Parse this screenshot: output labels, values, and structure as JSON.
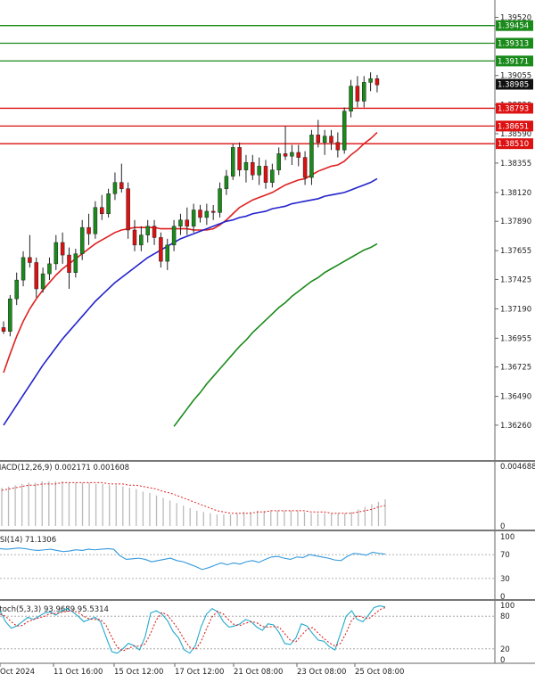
{
  "chart_data": [
    {
      "type": "candlestick",
      "panel": "price",
      "ylim": [
        1.3601,
        1.3963
      ],
      "y_ticks": [
        "1.39520",
        "1.39055",
        "1.38820",
        "1.38590",
        "1.38355",
        "1.38120",
        "1.37890",
        "1.37655",
        "1.37425",
        "1.37190",
        "1.36955",
        "1.36725",
        "1.36490",
        "1.36260"
      ],
      "current_price": {
        "value": 1.38985,
        "label": "1.38985"
      },
      "horizontal_levels": [
        {
          "value": 1.39454,
          "label": "1.39454",
          "color": "#1a8a1a"
        },
        {
          "value": 1.39313,
          "label": "1.39313",
          "color": "#1a8a1a"
        },
        {
          "value": 1.39171,
          "label": "1.39171",
          "color": "#1a8a1a"
        },
        {
          "value": 1.38793,
          "label": "1.38793",
          "color": "#dd1111"
        },
        {
          "value": 1.38651,
          "label": "1.38651",
          "color": "#dd1111"
        },
        {
          "value": 1.3851,
          "label": "1.38510",
          "color": "#dd1111"
        }
      ],
      "candles": [
        [
          1.3704,
          1.3709,
          1.3699,
          1.3701
        ],
        [
          1.3701,
          1.373,
          1.3697,
          1.3727
        ],
        [
          1.3727,
          1.3748,
          1.3722,
          1.3742
        ],
        [
          1.3742,
          1.3765,
          1.3737,
          1.376
        ],
        [
          1.376,
          1.3778,
          1.3752,
          1.3756
        ],
        [
          1.3756,
          1.376,
          1.3728,
          1.3735
        ],
        [
          1.3735,
          1.3752,
          1.3732,
          1.3747
        ],
        [
          1.3747,
          1.376,
          1.3742,
          1.3755
        ],
        [
          1.3755,
          1.3778,
          1.375,
          1.3772
        ],
        [
          1.3772,
          1.378,
          1.3755,
          1.3762
        ],
        [
          1.3762,
          1.3768,
          1.3735,
          1.3748
        ],
        [
          1.3748,
          1.3767,
          1.3744,
          1.3763
        ],
        [
          1.3763,
          1.379,
          1.3758,
          1.3784
        ],
        [
          1.3784,
          1.3795,
          1.377,
          1.3779
        ],
        [
          1.3779,
          1.3805,
          1.3775,
          1.38
        ],
        [
          1.38,
          1.381,
          1.379,
          1.3795
        ],
        [
          1.3795,
          1.3815,
          1.3792,
          1.3811
        ],
        [
          1.3811,
          1.3828,
          1.3806,
          1.382
        ],
        [
          1.382,
          1.3835,
          1.3812,
          1.3815
        ],
        [
          1.3815,
          1.382,
          1.3775,
          1.3782
        ],
        [
          1.3782,
          1.379,
          1.3765,
          1.377
        ],
        [
          1.377,
          1.3785,
          1.3765,
          1.3778
        ],
        [
          1.3778,
          1.379,
          1.3772,
          1.3785
        ],
        [
          1.3785,
          1.379,
          1.377,
          1.3776
        ],
        [
          1.3776,
          1.378,
          1.3752,
          1.3757
        ],
        [
          1.3757,
          1.3775,
          1.375,
          1.377
        ],
        [
          1.377,
          1.379,
          1.3765,
          1.3785
        ],
        [
          1.3785,
          1.3795,
          1.3778,
          1.379
        ],
        [
          1.379,
          1.38,
          1.3778,
          1.3785
        ],
        [
          1.3785,
          1.3803,
          1.378,
          1.3798
        ],
        [
          1.3798,
          1.3802,
          1.3788,
          1.3792
        ],
        [
          1.3792,
          1.3803,
          1.3786,
          1.3797
        ],
        [
          1.3797,
          1.3802,
          1.379,
          1.3796
        ],
        [
          1.3796,
          1.382,
          1.3792,
          1.3815
        ],
        [
          1.3815,
          1.383,
          1.381,
          1.3825
        ],
        [
          1.3825,
          1.3851,
          1.3822,
          1.3848
        ],
        [
          1.3848,
          1.3852,
          1.3825,
          1.383
        ],
        [
          1.383,
          1.3842,
          1.382,
          1.3836
        ],
        [
          1.3836,
          1.3842,
          1.3822,
          1.3826
        ],
        [
          1.3826,
          1.384,
          1.3818,
          1.3833
        ],
        [
          1.3833,
          1.3838,
          1.3815,
          1.382
        ],
        [
          1.382,
          1.3835,
          1.3816,
          1.383
        ],
        [
          1.383,
          1.3848,
          1.3826,
          1.3843
        ],
        [
          1.3843,
          1.3865,
          1.3838,
          1.3841
        ],
        [
          1.3841,
          1.385,
          1.3834,
          1.3844
        ],
        [
          1.3844,
          1.385,
          1.3833,
          1.384
        ],
        [
          1.384,
          1.3845,
          1.3818,
          1.3824
        ],
        [
          1.3824,
          1.3862,
          1.3818,
          1.3858
        ],
        [
          1.3858,
          1.387,
          1.3848,
          1.3852
        ],
        [
          1.3852,
          1.3862,
          1.3842,
          1.3857
        ],
        [
          1.3857,
          1.3862,
          1.3846,
          1.3852
        ],
        [
          1.3852,
          1.386,
          1.384,
          1.3846
        ],
        [
          1.3846,
          1.388,
          1.3843,
          1.3877
        ],
        [
          1.3877,
          1.3902,
          1.3872,
          1.3897
        ],
        [
          1.3897,
          1.3905,
          1.388,
          1.3885
        ],
        [
          1.3885,
          1.3905,
          1.388,
          1.39
        ],
        [
          1.39,
          1.3908,
          1.3893,
          1.3903
        ],
        [
          1.3903,
          1.3906,
          1.3892,
          1.3898
        ]
      ],
      "moving_averages": [
        {
          "color": "#e02020",
          "values": [
            1.3668,
            1.3683,
            1.3697,
            1.3709,
            1.3719,
            1.3727,
            1.3734,
            1.374,
            1.3746,
            1.3751,
            1.3755,
            1.3759,
            1.3763,
            1.3767,
            1.3771,
            1.3774,
            1.3777,
            1.378,
            1.3782,
            1.3783,
            1.3784,
            1.3784,
            1.3784,
            1.3784,
            1.3783,
            1.3783,
            1.3783,
            1.3783,
            1.3783,
            1.3782,
            1.3782,
            1.3782,
            1.3783,
            1.3786,
            1.379,
            1.3795,
            1.38,
            1.3803,
            1.3806,
            1.3808,
            1.381,
            1.3812,
            1.3815,
            1.3818,
            1.382,
            1.3822,
            1.3823,
            1.3826,
            1.3829,
            1.3831,
            1.3833,
            1.3834,
            1.3837,
            1.3842,
            1.3846,
            1.3851,
            1.3855,
            1.386
          ]
        },
        {
          "color": "#2222cc",
          "values": [
            1.3626,
            1.3634,
            1.3642,
            1.365,
            1.3658,
            1.3666,
            1.3674,
            1.3681,
            1.3688,
            1.3695,
            1.3701,
            1.3707,
            1.3713,
            1.3719,
            1.3725,
            1.373,
            1.3735,
            1.374,
            1.3744,
            1.3748,
            1.3752,
            1.3756,
            1.376,
            1.3763,
            1.3766,
            1.3769,
            1.3772,
            1.3775,
            1.3777,
            1.3779,
            1.3781,
            1.3783,
            1.3785,
            1.3787,
            1.3789,
            1.379,
            1.3792,
            1.3793,
            1.3795,
            1.3796,
            1.3797,
            1.3799,
            1.38,
            1.3801,
            1.3803,
            1.3804,
            1.3805,
            1.3806,
            1.3807,
            1.3809,
            1.381,
            1.3811,
            1.3812,
            1.3814,
            1.3816,
            1.3818,
            1.382,
            1.3823
          ]
        },
        {
          "color": "#1a8a1a",
          "values": [
            null,
            null,
            null,
            null,
            null,
            null,
            null,
            null,
            null,
            null,
            null,
            null,
            null,
            null,
            null,
            null,
            null,
            null,
            null,
            null,
            null,
            null,
            null,
            null,
            null,
            null,
            1.3625,
            1.3632,
            1.3639,
            1.3646,
            1.3652,
            1.3659,
            1.3665,
            1.3671,
            1.3677,
            1.3683,
            1.3689,
            1.3694,
            1.37,
            1.3705,
            1.371,
            1.3715,
            1.372,
            1.3724,
            1.3729,
            1.3733,
            1.3737,
            1.3741,
            1.3744,
            1.3748,
            1.3751,
            1.3754,
            1.3757,
            1.376,
            1.3763,
            1.3766,
            1.3768,
            1.3771
          ]
        }
      ]
    },
    {
      "type": "bar",
      "panel": "macd",
      "label": "MACD(12,26,9) 0.002171 0.001608",
      "y_ticks": [
        "0.004688",
        "0"
      ],
      "ylim": [
        0,
        0.004688
      ],
      "values": [
        0.003,
        0.0031,
        0.0032,
        0.0033,
        0.0034,
        0.0034,
        0.0035,
        0.0035,
        0.0035,
        0.0035,
        0.0034,
        0.0034,
        0.0034,
        0.0034,
        0.0033,
        0.0033,
        0.0032,
        0.0032,
        0.0031,
        0.003,
        0.0029,
        0.0027,
        0.0026,
        0.0024,
        0.0022,
        0.002,
        0.0018,
        0.0016,
        0.0014,
        0.0012,
        0.0011,
        0.001,
        0.0009,
        0.0009,
        0.0009,
        0.001,
        0.0011,
        0.0011,
        0.0012,
        0.0012,
        0.0012,
        0.0012,
        0.0012,
        0.0012,
        0.0012,
        0.0011,
        0.001,
        0.001,
        0.001,
        0.001,
        0.001,
        0.001,
        0.0011,
        0.0013,
        0.0015,
        0.0017,
        0.0019,
        0.0021
      ],
      "signal": [
        0.0028,
        0.0029,
        0.003,
        0.0031,
        0.0032,
        0.0032,
        0.0033,
        0.0033,
        0.0033,
        0.0034,
        0.0034,
        0.0034,
        0.0034,
        0.0034,
        0.0034,
        0.0034,
        0.0033,
        0.0033,
        0.0033,
        0.0032,
        0.0032,
        0.0031,
        0.003,
        0.0029,
        0.0027,
        0.0026,
        0.0024,
        0.0022,
        0.002,
        0.0018,
        0.0016,
        0.0014,
        0.0012,
        0.0011,
        0.001,
        0.001,
        0.001,
        0.001,
        0.0011,
        0.0011,
        0.0012,
        0.0012,
        0.0012,
        0.0012,
        0.0012,
        0.0012,
        0.0011,
        0.0011,
        0.0011,
        0.001,
        0.001,
        0.001,
        0.001,
        0.0011,
        0.0012,
        0.0013,
        0.0015,
        0.0016
      ]
    },
    {
      "type": "line",
      "panel": "rsi",
      "label": "RSI(14) 71.1306",
      "y_ticks": [
        "100",
        "70",
        "30",
        "0"
      ],
      "ylim": [
        0,
        100
      ],
      "levels": [
        70,
        30
      ],
      "values": [
        80,
        79,
        80,
        81,
        80,
        78,
        77,
        78,
        79,
        77,
        75,
        76,
        78,
        77,
        79,
        78,
        79,
        80,
        79,
        68,
        62,
        63,
        64,
        62,
        58,
        60,
        62,
        64,
        60,
        58,
        54,
        50,
        45,
        48,
        52,
        56,
        53,
        56,
        54,
        58,
        60,
        57,
        62,
        66,
        67,
        64,
        62,
        66,
        65,
        70,
        68,
        66,
        64,
        61,
        60,
        67,
        72,
        71,
        69,
        74,
        72,
        71
      ]
    },
    {
      "type": "line",
      "panel": "stochastic",
      "label": "Stoch(5,3,3) 93.9689 95.5314",
      "y_ticks": [
        "100",
        "80",
        "20",
        "0"
      ],
      "ylim": [
        0,
        100
      ],
      "levels": [
        80,
        20
      ],
      "k": [
        90,
        70,
        58,
        62,
        70,
        78,
        74,
        80,
        86,
        88,
        82,
        90,
        94,
        88,
        80,
        70,
        74,
        78,
        70,
        42,
        15,
        12,
        20,
        30,
        26,
        18,
        42,
        86,
        90,
        84,
        72,
        52,
        40,
        18,
        12,
        26,
        60,
        84,
        94,
        88,
        70,
        60,
        62,
        66,
        74,
        70,
        60,
        54,
        66,
        64,
        50,
        30,
        28,
        40,
        66,
        62,
        48,
        36,
        34,
        24,
        18,
        48,
        80,
        90,
        74,
        70,
        82,
        96,
        99,
        97
      ],
      "d": [
        84,
        80,
        70,
        62,
        63,
        70,
        74,
        77,
        80,
        85,
        85,
        87,
        89,
        90,
        87,
        80,
        75,
        74,
        74,
        63,
        42,
        23,
        16,
        21,
        25,
        25,
        29,
        49,
        73,
        87,
        82,
        69,
        55,
        37,
        23,
        19,
        33,
        57,
        79,
        89,
        84,
        73,
        64,
        63,
        67,
        70,
        68,
        61,
        60,
        61,
        60,
        48,
        36,
        33,
        45,
        56,
        59,
        49,
        39,
        31,
        25,
        30,
        49,
        73,
        81,
        78,
        75,
        83,
        92,
        96
      ]
    }
  ],
  "x_labels": [
    "Oct 2024",
    "11 Oct 16:00",
    "15 Oct 12:00",
    "17 Oct 12:00",
    "21 Oct 08:00",
    "23 Oct 08:00",
    "25 Oct 08:00"
  ],
  "colors": {
    "bull_candle": "#1a8a1a",
    "bear_candle": "#dd1111",
    "wick": "#222222",
    "price_tag_bg": "#111111",
    "macd_hist": "#bbbbbb",
    "macd_signal": "#e02020",
    "rsi_line": "#3399dd",
    "stoch_k": "#22aacc",
    "stoch_d": "#dd2222",
    "grid_level": "#9a9a9a",
    "panel_divider": "#777777"
  }
}
